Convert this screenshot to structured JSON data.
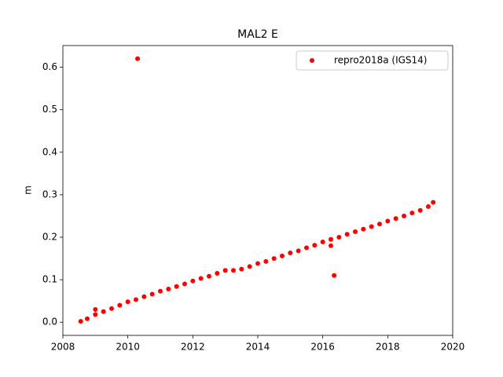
{
  "chart_data": {
    "type": "scatter",
    "title": "MAL2 E",
    "ylabel": "m",
    "series": [
      {
        "name": "repro2018a (IGS14)",
        "color": "#ff0000",
        "x": [
          2008.55,
          2008.75,
          2009.0,
          2009.25,
          2009.5,
          2009.75,
          2010.0,
          2010.25,
          2010.5,
          2010.75,
          2011.0,
          2011.25,
          2011.5,
          2011.75,
          2012.0,
          2012.25,
          2012.5,
          2012.75,
          2013.0,
          2013.25,
          2013.5,
          2013.75,
          2014.0,
          2014.25,
          2014.5,
          2014.75,
          2015.0,
          2015.25,
          2015.5,
          2015.75,
          2016.0,
          2016.25,
          2016.5,
          2016.75,
          2017.0,
          2017.25,
          2017.5,
          2017.75,
          2018.0,
          2018.25,
          2018.5,
          2018.75,
          2019.0,
          2019.25,
          2019.4,
          2009.0,
          2010.3,
          2016.25,
          2016.35
        ],
        "values": [
          0.002,
          0.008,
          0.018,
          0.025,
          0.032,
          0.04,
          0.048,
          0.053,
          0.06,
          0.066,
          0.073,
          0.078,
          0.084,
          0.09,
          0.097,
          0.103,
          0.108,
          0.115,
          0.122,
          0.122,
          0.125,
          0.131,
          0.138,
          0.143,
          0.15,
          0.156,
          0.163,
          0.168,
          0.175,
          0.181,
          0.189,
          0.195,
          0.2,
          0.207,
          0.213,
          0.219,
          0.225,
          0.231,
          0.238,
          0.244,
          0.25,
          0.257,
          0.263,
          0.272,
          0.282,
          0.03,
          0.62,
          0.18,
          0.11
        ]
      }
    ],
    "xlim": [
      2008,
      2020
    ],
    "xticks": [
      2008,
      2010,
      2012,
      2014,
      2016,
      2018,
      2020
    ],
    "ylim": [
      -0.031,
      0.651
    ],
    "yticks": [
      {
        "value": 0,
        "label": "0.0"
      },
      0.1,
      0.2,
      0.3,
      0.4,
      0.5,
      0.6
    ],
    "legend": "upper right"
  }
}
